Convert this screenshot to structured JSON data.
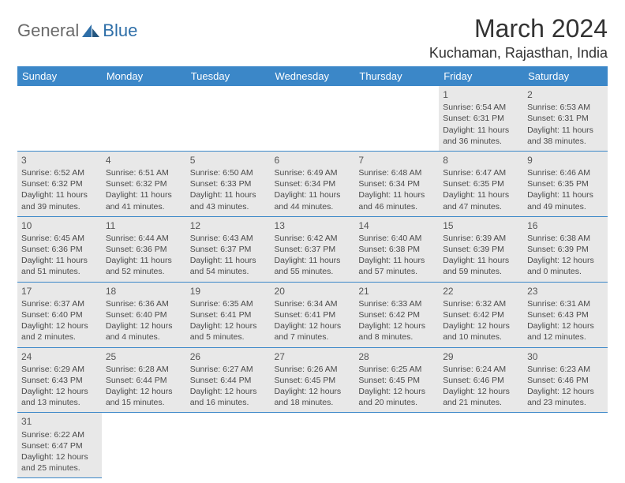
{
  "logo": {
    "word1": "General",
    "word2": "Blue"
  },
  "title": "March 2024",
  "location": "Kuchaman, Rajasthan, India",
  "colors": {
    "header_bg": "#3b87c8",
    "header_text": "#ffffff",
    "cell_bg": "#e8e8e8",
    "border": "#3b87c8",
    "logo_gray": "#6a6a6a",
    "logo_blue": "#2f6fa8"
  },
  "daynames": [
    "Sunday",
    "Monday",
    "Tuesday",
    "Wednesday",
    "Thursday",
    "Friday",
    "Saturday"
  ],
  "weeks": [
    [
      null,
      null,
      null,
      null,
      null,
      {
        "n": "1",
        "sr": "6:54 AM",
        "ss": "6:31 PM",
        "dl": "11 hours and 36 minutes."
      },
      {
        "n": "2",
        "sr": "6:53 AM",
        "ss": "6:31 PM",
        "dl": "11 hours and 38 minutes."
      }
    ],
    [
      {
        "n": "3",
        "sr": "6:52 AM",
        "ss": "6:32 PM",
        "dl": "11 hours and 39 minutes."
      },
      {
        "n": "4",
        "sr": "6:51 AM",
        "ss": "6:32 PM",
        "dl": "11 hours and 41 minutes."
      },
      {
        "n": "5",
        "sr": "6:50 AM",
        "ss": "6:33 PM",
        "dl": "11 hours and 43 minutes."
      },
      {
        "n": "6",
        "sr": "6:49 AM",
        "ss": "6:34 PM",
        "dl": "11 hours and 44 minutes."
      },
      {
        "n": "7",
        "sr": "6:48 AM",
        "ss": "6:34 PM",
        "dl": "11 hours and 46 minutes."
      },
      {
        "n": "8",
        "sr": "6:47 AM",
        "ss": "6:35 PM",
        "dl": "11 hours and 47 minutes."
      },
      {
        "n": "9",
        "sr": "6:46 AM",
        "ss": "6:35 PM",
        "dl": "11 hours and 49 minutes."
      }
    ],
    [
      {
        "n": "10",
        "sr": "6:45 AM",
        "ss": "6:36 PM",
        "dl": "11 hours and 51 minutes."
      },
      {
        "n": "11",
        "sr": "6:44 AM",
        "ss": "6:36 PM",
        "dl": "11 hours and 52 minutes."
      },
      {
        "n": "12",
        "sr": "6:43 AM",
        "ss": "6:37 PM",
        "dl": "11 hours and 54 minutes."
      },
      {
        "n": "13",
        "sr": "6:42 AM",
        "ss": "6:37 PM",
        "dl": "11 hours and 55 minutes."
      },
      {
        "n": "14",
        "sr": "6:40 AM",
        "ss": "6:38 PM",
        "dl": "11 hours and 57 minutes."
      },
      {
        "n": "15",
        "sr": "6:39 AM",
        "ss": "6:39 PM",
        "dl": "11 hours and 59 minutes."
      },
      {
        "n": "16",
        "sr": "6:38 AM",
        "ss": "6:39 PM",
        "dl": "12 hours and 0 minutes."
      }
    ],
    [
      {
        "n": "17",
        "sr": "6:37 AM",
        "ss": "6:40 PM",
        "dl": "12 hours and 2 minutes."
      },
      {
        "n": "18",
        "sr": "6:36 AM",
        "ss": "6:40 PM",
        "dl": "12 hours and 4 minutes."
      },
      {
        "n": "19",
        "sr": "6:35 AM",
        "ss": "6:41 PM",
        "dl": "12 hours and 5 minutes."
      },
      {
        "n": "20",
        "sr": "6:34 AM",
        "ss": "6:41 PM",
        "dl": "12 hours and 7 minutes."
      },
      {
        "n": "21",
        "sr": "6:33 AM",
        "ss": "6:42 PM",
        "dl": "12 hours and 8 minutes."
      },
      {
        "n": "22",
        "sr": "6:32 AM",
        "ss": "6:42 PM",
        "dl": "12 hours and 10 minutes."
      },
      {
        "n": "23",
        "sr": "6:31 AM",
        "ss": "6:43 PM",
        "dl": "12 hours and 12 minutes."
      }
    ],
    [
      {
        "n": "24",
        "sr": "6:29 AM",
        "ss": "6:43 PM",
        "dl": "12 hours and 13 minutes."
      },
      {
        "n": "25",
        "sr": "6:28 AM",
        "ss": "6:44 PM",
        "dl": "12 hours and 15 minutes."
      },
      {
        "n": "26",
        "sr": "6:27 AM",
        "ss": "6:44 PM",
        "dl": "12 hours and 16 minutes."
      },
      {
        "n": "27",
        "sr": "6:26 AM",
        "ss": "6:45 PM",
        "dl": "12 hours and 18 minutes."
      },
      {
        "n": "28",
        "sr": "6:25 AM",
        "ss": "6:45 PM",
        "dl": "12 hours and 20 minutes."
      },
      {
        "n": "29",
        "sr": "6:24 AM",
        "ss": "6:46 PM",
        "dl": "12 hours and 21 minutes."
      },
      {
        "n": "30",
        "sr": "6:23 AM",
        "ss": "6:46 PM",
        "dl": "12 hours and 23 minutes."
      }
    ],
    [
      {
        "n": "31",
        "sr": "6:22 AM",
        "ss": "6:47 PM",
        "dl": "12 hours and 25 minutes."
      },
      null,
      null,
      null,
      null,
      null,
      null
    ]
  ],
  "labels": {
    "sunrise": "Sunrise:",
    "sunset": "Sunset:",
    "daylight": "Daylight:"
  }
}
